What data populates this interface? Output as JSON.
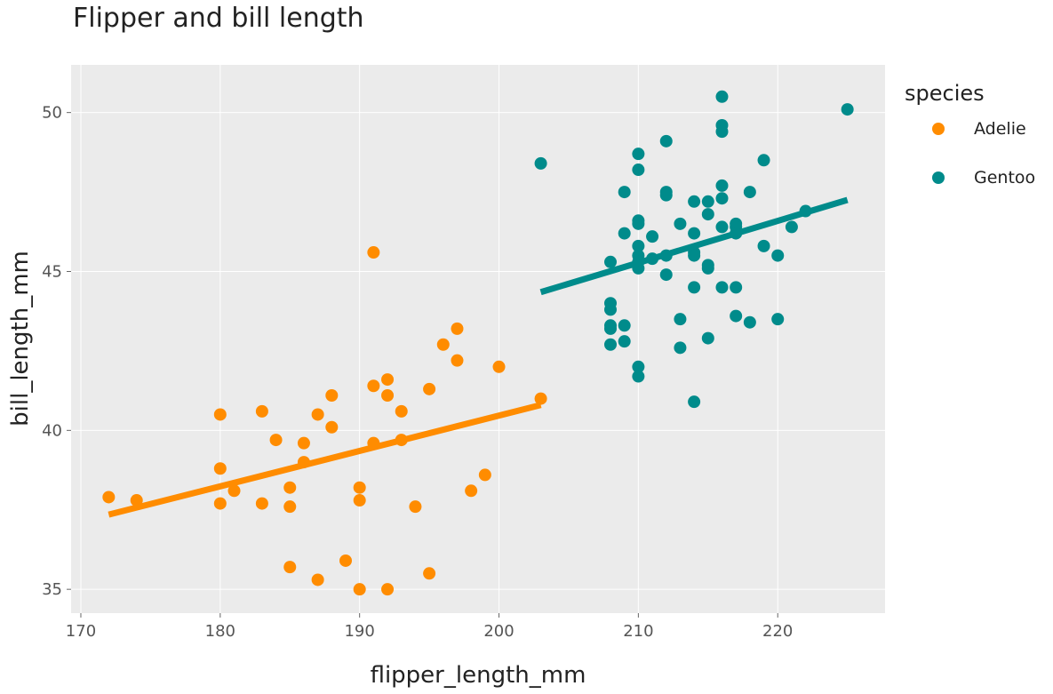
{
  "chart_data": {
    "type": "scatter",
    "title": "Flipper and bill length",
    "xlabel": "flipper_length_mm",
    "ylabel": "bill_length_mm",
    "xlim": [
      169.3,
      227.7
    ],
    "ylim": [
      34.25,
      51.5
    ],
    "x_ticks": [
      170,
      180,
      190,
      200,
      210,
      220
    ],
    "y_ticks": [
      35,
      40,
      45,
      50
    ],
    "grid": true,
    "legend": {
      "title": "species",
      "position": "right"
    },
    "series": [
      {
        "name": "Adelie",
        "color": "#ff8c00",
        "points": [
          [
            172,
            37.9
          ],
          [
            174,
            37.8
          ],
          [
            180,
            40.5
          ],
          [
            180,
            38.8
          ],
          [
            180,
            37.7
          ],
          [
            181,
            38.1
          ],
          [
            183,
            40.6
          ],
          [
            183,
            37.7
          ],
          [
            184,
            39.7
          ],
          [
            185,
            38.2
          ],
          [
            185,
            37.6
          ],
          [
            185,
            35.7
          ],
          [
            186,
            39.6
          ],
          [
            186,
            39.0
          ],
          [
            187,
            40.5
          ],
          [
            187,
            35.3
          ],
          [
            188,
            41.1
          ],
          [
            188,
            40.1
          ],
          [
            189,
            35.9
          ],
          [
            190,
            38.2
          ],
          [
            190,
            37.8
          ],
          [
            190,
            35.0
          ],
          [
            191,
            45.6
          ],
          [
            191,
            41.4
          ],
          [
            191,
            39.6
          ],
          [
            192,
            41.6
          ],
          [
            192,
            41.1
          ],
          [
            192,
            35.0
          ],
          [
            193,
            40.6
          ],
          [
            193,
            39.7
          ],
          [
            194,
            37.6
          ],
          [
            195,
            41.3
          ],
          [
            195,
            35.5
          ],
          [
            196,
            42.7
          ],
          [
            197,
            43.2
          ],
          [
            197,
            42.2
          ],
          [
            198,
            38.1
          ],
          [
            199,
            38.6
          ],
          [
            200,
            42.0
          ],
          [
            203,
            41.0
          ]
        ],
        "trend": [
          [
            172,
            37.35
          ],
          [
            203,
            40.8
          ]
        ]
      },
      {
        "name": "Gentoo",
        "color": "#008b8b",
        "points": [
          [
            203,
            48.4
          ],
          [
            208,
            45.3
          ],
          [
            208,
            44.0
          ],
          [
            208,
            43.8
          ],
          [
            208,
            43.3
          ],
          [
            208,
            43.2
          ],
          [
            208,
            42.7
          ],
          [
            209,
            47.5
          ],
          [
            209,
            46.2
          ],
          [
            209,
            43.3
          ],
          [
            209,
            42.8
          ],
          [
            210,
            48.7
          ],
          [
            210,
            48.2
          ],
          [
            210,
            46.6
          ],
          [
            210,
            46.5
          ],
          [
            210,
            45.8
          ],
          [
            210,
            45.5
          ],
          [
            210,
            45.3
          ],
          [
            210,
            45.1
          ],
          [
            210,
            42.0
          ],
          [
            210,
            41.7
          ],
          [
            211,
            46.1
          ],
          [
            211,
            45.4
          ],
          [
            212,
            49.1
          ],
          [
            212,
            47.5
          ],
          [
            212,
            47.4
          ],
          [
            212,
            45.5
          ],
          [
            212,
            44.9
          ],
          [
            213,
            46.5
          ],
          [
            213,
            43.5
          ],
          [
            213,
            42.6
          ],
          [
            214,
            47.2
          ],
          [
            214,
            46.2
          ],
          [
            214,
            45.6
          ],
          [
            214,
            45.5
          ],
          [
            214,
            44.5
          ],
          [
            214,
            40.9
          ],
          [
            215,
            47.2
          ],
          [
            215,
            46.8
          ],
          [
            215,
            45.2
          ],
          [
            215,
            45.1
          ],
          [
            215,
            42.9
          ],
          [
            216,
            50.5
          ],
          [
            216,
            49.6
          ],
          [
            216,
            49.4
          ],
          [
            216,
            47.7
          ],
          [
            216,
            47.3
          ],
          [
            216,
            46.4
          ],
          [
            216,
            44.5
          ],
          [
            217,
            46.5
          ],
          [
            217,
            46.4
          ],
          [
            217,
            46.2
          ],
          [
            217,
            44.5
          ],
          [
            217,
            43.6
          ],
          [
            218,
            47.5
          ],
          [
            218,
            43.4
          ],
          [
            219,
            48.5
          ],
          [
            219,
            45.8
          ],
          [
            220,
            45.5
          ],
          [
            220,
            43.5
          ],
          [
            221,
            46.4
          ],
          [
            222,
            46.9
          ],
          [
            225,
            50.1
          ]
        ],
        "trend": [
          [
            203,
            44.35
          ],
          [
            225,
            47.25
          ]
        ]
      }
    ]
  }
}
